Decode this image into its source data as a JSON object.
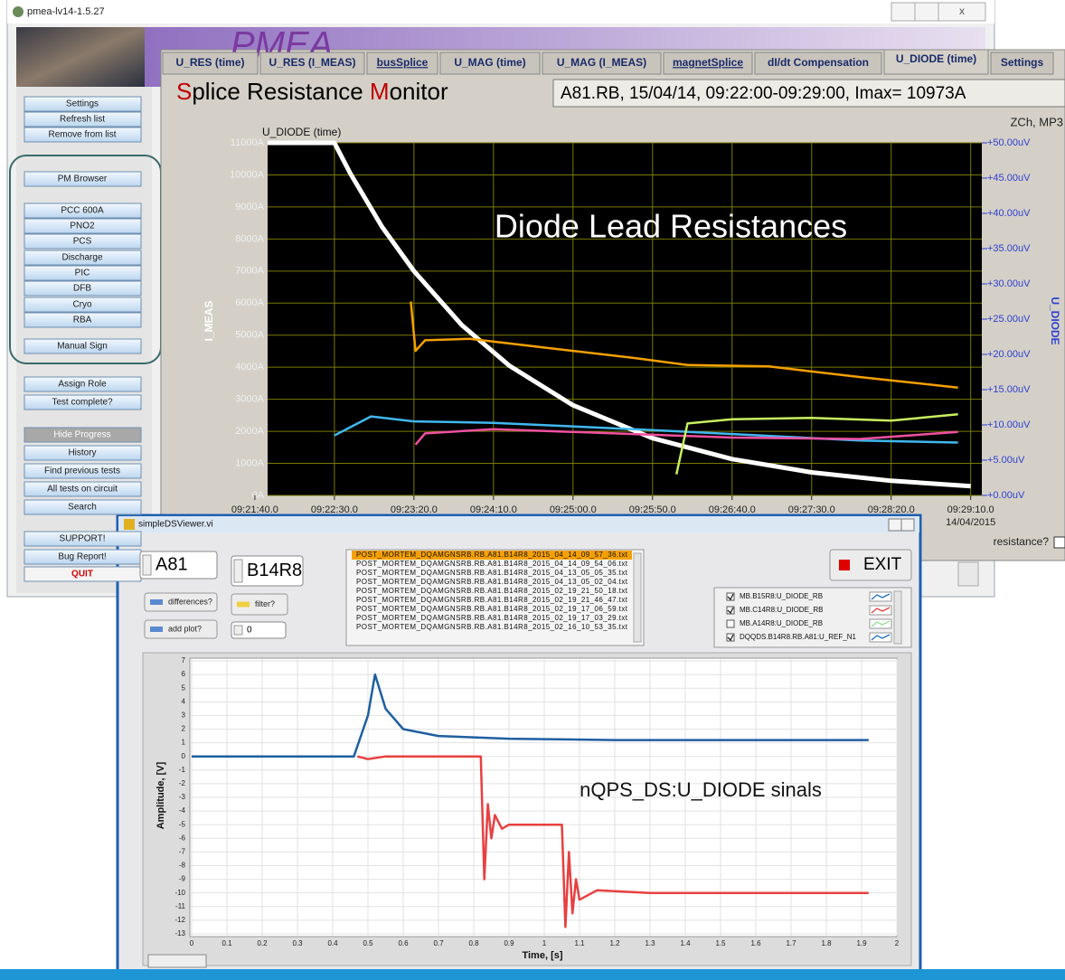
{
  "pmea": {
    "title": "pmea-lv14-1.5.27",
    "logo": "PMEA",
    "buttons": [
      "Settings",
      "Refresh  list",
      "Remove from list",
      "PM Browser",
      "PCC 600A",
      "PNO2",
      "PCS",
      "Discharge",
      "PIC",
      "DFB",
      "Cryo",
      "RBA",
      "Manual Sign",
      "Assign Role",
      "Test complete?",
      "Hide Progress",
      "History",
      "Find previous tests",
      "All tests on circuit",
      "Search",
      "SUPPORT!",
      "Bug Report!",
      "QUIT"
    ]
  },
  "monitor": {
    "tabs": [
      "U_RES (time)",
      "U_RES (I_MEAS)",
      "busSplice",
      "U_MAG (time)",
      "U_MAG (I_MEAS)",
      "magnetSplice",
      "dI/dt Compensation",
      "U_DIODE (time)",
      "Settings"
    ],
    "active_tab": 7,
    "title": [
      {
        "text": "S",
        "color": "#c00000"
      },
      {
        "text": "plice Resistance ",
        "color": "#000000"
      },
      {
        "text": "M",
        "color": "#c00000"
      },
      {
        "text": "onitor",
        "color": "#000000"
      }
    ],
    "info": "A81.RB, 15/04/14, 09:22:00-09:29:00, Imax= 10973A",
    "corner": "ZCh, MP3",
    "resistance_label": "resistance?",
    "chart": {
      "type": "line",
      "title": "U_DIODE (time)",
      "annotation": "Diode Lead Resistances",
      "ylabel": "I_MEAS",
      "y2label": "U_DIODE",
      "date": "14/04/2015",
      "grid": true,
      "xlim": [
        8,
        457
      ],
      "xticks": [
        {
          "value": 0,
          "label": "09:21:40.0"
        },
        {
          "value": 50,
          "label": "09:22:30.0"
        },
        {
          "value": 100,
          "label": "09:23:20.0"
        },
        {
          "value": 150,
          "label": "09:24:10.0"
        },
        {
          "value": 200,
          "label": "09:25:00.0"
        },
        {
          "value": 250,
          "label": "09:25:50.0"
        },
        {
          "value": 300,
          "label": "09:26:40.0"
        },
        {
          "value": 350,
          "label": "09:27:30.0"
        },
        {
          "value": 400,
          "label": "09:28:20.0"
        },
        {
          "value": 450,
          "label": "09:29:10.0"
        }
      ],
      "ylim": [
        0,
        11000
      ],
      "yticks": [
        {
          "value": 0,
          "label": "0A"
        },
        {
          "value": 1000,
          "label": "1000A"
        },
        {
          "value": 2000,
          "label": "2000A"
        },
        {
          "value": 3000,
          "label": "3000A"
        },
        {
          "value": 4000,
          "label": "4000A"
        },
        {
          "value": 5000,
          "label": "5000A"
        },
        {
          "value": 6000,
          "label": "6000A"
        },
        {
          "value": 7000,
          "label": "7000A"
        },
        {
          "value": 8000,
          "label": "8000A"
        },
        {
          "value": 9000,
          "label": "9000A"
        },
        {
          "value": 10000,
          "label": "10000A"
        },
        {
          "value": 11000,
          "label": "11000A"
        }
      ],
      "y2lim": [
        0,
        50
      ],
      "y2ticks": [
        {
          "value": 0,
          "label": "+0.00uV"
        },
        {
          "value": 5,
          "label": "+5.00uV"
        },
        {
          "value": 10,
          "label": "+10.00uV"
        },
        {
          "value": 15,
          "label": "+15.00uV"
        },
        {
          "value": 20,
          "label": "+20.00uV"
        },
        {
          "value": 25,
          "label": "+25.00uV"
        },
        {
          "value": 30,
          "label": "+30.00uV"
        },
        {
          "value": 35,
          "label": "+35.00uV"
        },
        {
          "value": 40,
          "label": "+40.00uV"
        },
        {
          "value": 45,
          "label": "+45.00uV"
        },
        {
          "value": 50,
          "label": "+50.00uV"
        }
      ],
      "series": [
        {
          "color": "#ffffff",
          "axis": "y",
          "x": [
            8,
            50,
            60,
            80,
            100,
            130,
            160,
            200,
            250,
            300,
            350,
            400,
            450
          ],
          "values": [
            11000,
            11000,
            10044,
            8375,
            6999,
            5317,
            4048,
            2814,
            1786,
            1135,
            720,
            457,
            290
          ]
        },
        {
          "color": "#f5a000",
          "axis": "y2",
          "x": [
            98,
            101,
            107,
            135,
            181,
            238,
            272,
            323,
            380,
            442
          ],
          "values": [
            27.5,
            20.5,
            22,
            22.2,
            21,
            19.5,
            18.5,
            18.3,
            16.8,
            15.3
          ]
        },
        {
          "color": "#40b8f0",
          "axis": "y2",
          "x": [
            50,
            73,
            100,
            150,
            238,
            300,
            380,
            442
          ],
          "values": [
            8.5,
            11.2,
            10.5,
            10.3,
            9.4,
            8.7,
            7.8,
            7.5
          ]
        },
        {
          "color": "#f050a0",
          "axis": "y2",
          "x": [
            101,
            107,
            150,
            238,
            300,
            380,
            442
          ],
          "values": [
            7.2,
            8.8,
            9.4,
            8.7,
            8.2,
            8,
            9
          ]
        },
        {
          "color": "#c8f060",
          "axis": "y2",
          "x": [
            265,
            272,
            300,
            350,
            400,
            442
          ],
          "values": [
            3,
            10.2,
            10.8,
            11,
            10.6,
            11.5
          ]
        }
      ]
    }
  },
  "viewer": {
    "title": "simpleDSViewer.vi",
    "sector": "A81",
    "magnet": "B14R8",
    "exit": "EXIT",
    "differences": "differences?",
    "filter": "filter?",
    "add_plot": "add plot?",
    "plot_index": "0",
    "selected_file": 0,
    "files": [
      "POST_MORTEM_DQAMGNSRB.RB.A81.B14R8_2015_04_14_09_57_36.txt",
      "POST_MORTEM_DQAMGNSRB.RB.A81.B14R8_2015_04_14_09_54_06.txt",
      "POST_MORTEM_DQAMGNSRB.RB.A81.B14R8_2015_04_13_05_05_35.txt",
      "POST_MORTEM_DQAMGNSRB.RB.A81.B14R8_2015_04_13_05_02_04.txt",
      "POST_MORTEM_DQAMGNSRB.RB.A81.B14R8_2015_02_19_21_50_18.txt",
      "POST_MORTEM_DQAMGNSRB.RB.A81.B14R8_2015_02_19_21_46_47.txt",
      "POST_MORTEM_DQAMGNSRB.RB.A81.B14R8_2015_02_19_17_06_59.txt",
      "POST_MORTEM_DQAMGNSRB.RB.A81.B14R8_2015_02_19_17_03_29.txt",
      "POST_MORTEM_DQAMGNSRB.RB.A81.B14R8_2015_02_16_10_53_35.txt"
    ],
    "legend": [
      {
        "name": "MB.B15R8:U_DIODE_RB",
        "color": "#1f6fc0",
        "checked": true
      },
      {
        "name": "MB.C14R8:U_DIODE_RB",
        "color": "#e84040",
        "checked": true
      },
      {
        "name": "MB.A14R8:U_DIODE_RB",
        "color": "#90e090",
        "checked": false
      },
      {
        "name": "DQQDS.B14R8.RB.A81:U_REF_N1",
        "color": "#1f6fc0",
        "checked": true
      }
    ],
    "chart": {
      "type": "line",
      "annotation": "nQPS_DS:U_DIODE sinals",
      "xlabel": "Time, [s]",
      "ylabel": "Amplitude, [V]",
      "grid": true,
      "xlim": [
        0,
        2
      ],
      "xticks": [
        0,
        0.1,
        0.2,
        0.3,
        0.4,
        0.5,
        0.6,
        0.7,
        0.8,
        0.9,
        1,
        1.1,
        1.2,
        1.3,
        1.4,
        1.5,
        1.6,
        1.7,
        1.8,
        1.9,
        2
      ],
      "ylim": [
        -13.2,
        7.2
      ],
      "yticks": [
        7,
        6,
        5,
        4,
        3,
        2,
        1,
        0,
        -1,
        -2,
        -3,
        -4,
        -5,
        -6,
        -7,
        -8,
        -9,
        -10,
        -11,
        -12,
        -13
      ],
      "series": [
        {
          "color": "#1f5fa0",
          "x": [
            0,
            0.46,
            0.5,
            0.52,
            0.55,
            0.6,
            0.7,
            0.9,
            1.2,
            1.92
          ],
          "values": [
            0,
            0,
            3,
            6,
            3.5,
            2,
            1.5,
            1.3,
            1.2,
            1.2
          ]
        },
        {
          "color": "#e84040",
          "x": [
            0.47,
            0.5,
            0.55,
            0.82,
            0.83,
            0.84,
            0.85,
            0.86,
            0.88,
            0.9,
            1.05,
            1.06,
            1.07,
            1.08,
            1.09,
            1.1,
            1.15,
            1.3,
            1.92
          ],
          "values": [
            0,
            -0.2,
            0,
            0,
            -9,
            -3.5,
            -6,
            -4.3,
            -5.3,
            -5,
            -5,
            -12.5,
            -7,
            -11.5,
            -9,
            -10.5,
            -9.8,
            -10,
            -10
          ]
        }
      ]
    }
  }
}
